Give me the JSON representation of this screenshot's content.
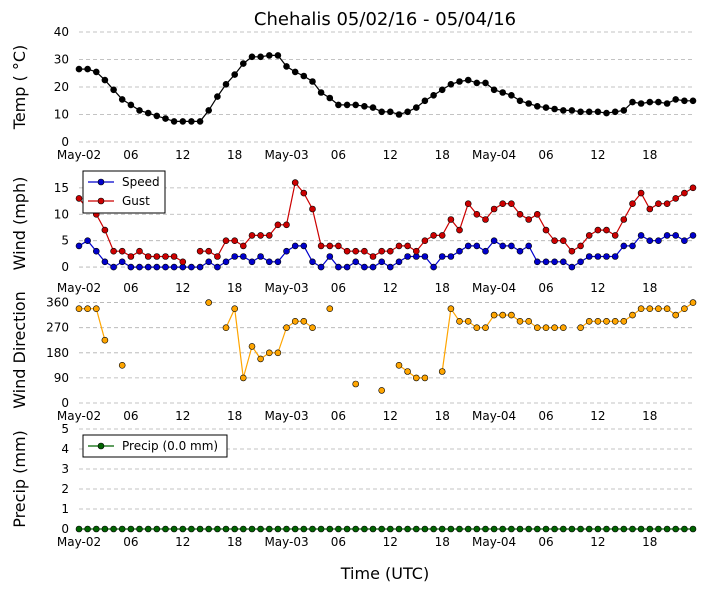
{
  "figure": {
    "title": "Chehalis 05/02/16 - 05/04/16",
    "xlabel": "Time (UTC)"
  },
  "chart_data": [
    {
      "type": "line",
      "ylabel": "Temp ( °C)",
      "ylim": [
        0,
        40
      ],
      "yticks": [
        0,
        10,
        20,
        30,
        40
      ],
      "grid": true,
      "x_ticks": [
        "May-02",
        "06",
        "12",
        "18",
        "May-03",
        "06",
        "12",
        "18",
        "May-04",
        "06",
        "12",
        "18"
      ],
      "series": [
        {
          "color": "#000000",
          "values": [
            26.5,
            26.5,
            25.5,
            22.5,
            19,
            15.5,
            13.5,
            11.5,
            10.5,
            9.5,
            8.5,
            7.5,
            7.5,
            7.5,
            7.5,
            11.5,
            16.5,
            21,
            24.5,
            28.5,
            31,
            31,
            31.5,
            31.5,
            27.5,
            25.5,
            24,
            22,
            18,
            16,
            13.5,
            13.5,
            13.5,
            13,
            12.5,
            11,
            11,
            10,
            11,
            12.5,
            15,
            17,
            19,
            21,
            22,
            22.5,
            21.5,
            21.5,
            19,
            18,
            17,
            15,
            14,
            13,
            12.5,
            12,
            11.5,
            11.5,
            11,
            11,
            11,
            10.5,
            11,
            11.5,
            14.5,
            14,
            14.5,
            14.5,
            14,
            15.5,
            15,
            15
          ]
        }
      ]
    },
    {
      "type": "line",
      "ylabel": "Wind (mph)",
      "ylim": [
        -1.5,
        18
      ],
      "yticks": [
        0,
        5,
        10,
        15
      ],
      "grid": true,
      "legend": "top-left",
      "x_ticks": [
        "May-02",
        "06",
        "12",
        "18",
        "May-03",
        "06",
        "12",
        "18",
        "May-04",
        "06",
        "12",
        "18"
      ],
      "series": [
        {
          "name": "Speed",
          "color": "#0000cc",
          "values": [
            4,
            5,
            3,
            1,
            0,
            1,
            0,
            0,
            0,
            0,
            0,
            0,
            0,
            0,
            0,
            1,
            0,
            1,
            2,
            2,
            1,
            2,
            1,
            1,
            3,
            4,
            4,
            1,
            0,
            2,
            0,
            0,
            1,
            0,
            0,
            1,
            0,
            1,
            2,
            2,
            2,
            0,
            2,
            2,
            3,
            4,
            4,
            3,
            5,
            4,
            4,
            3,
            4,
            1,
            1,
            1,
            1,
            0,
            1,
            2,
            2,
            2,
            2,
            4,
            4,
            6,
            5,
            5,
            6,
            6,
            5,
            6
          ]
        },
        {
          "name": "Gust",
          "color": "#cc0000",
          "values": [
            13,
            11,
            10,
            7,
            3,
            3,
            2,
            3,
            2,
            2,
            2,
            2,
            1,
            null,
            3,
            3,
            2,
            5,
            5,
            4,
            6,
            6,
            6,
            8,
            8,
            16,
            14,
            11,
            4,
            4,
            4,
            3,
            3,
            3,
            2,
            3,
            3,
            4,
            4,
            3,
            5,
            6,
            6,
            9,
            7,
            12,
            10,
            9,
            11,
            12,
            12,
            10,
            9,
            10,
            7,
            5,
            5,
            3,
            4,
            6,
            7,
            7,
            6,
            9,
            12,
            14,
            11,
            12,
            12,
            13,
            14,
            15
          ]
        }
      ]
    },
    {
      "type": "scatter",
      "ylabel": "Wind Direction",
      "ylim": [
        0,
        380
      ],
      "yticks": [
        0,
        90,
        180,
        270,
        360
      ],
      "grid": true,
      "x_ticks": [
        "May-02",
        "06",
        "12",
        "18",
        "May-03",
        "06",
        "12",
        "18",
        "May-04",
        "06",
        "12",
        "18"
      ],
      "series": [
        {
          "color": "#ffa500",
          "values": [
            338,
            338,
            338,
            225,
            null,
            135,
            null,
            null,
            null,
            null,
            null,
            null,
            null,
            null,
            null,
            360,
            null,
            270,
            338,
            90,
            203,
            158,
            180,
            180,
            270,
            293,
            293,
            270,
            null,
            338,
            null,
            null,
            68,
            null,
            null,
            45,
            null,
            135,
            113,
            90,
            90,
            null,
            113,
            338,
            293,
            293,
            270,
            270,
            315,
            315,
            315,
            293,
            293,
            270,
            270,
            270,
            270,
            null,
            270,
            293,
            293,
            293,
            293,
            293,
            315,
            338,
            338,
            338,
            338,
            315,
            338,
            360
          ]
        }
      ]
    },
    {
      "type": "line",
      "ylabel": "Precip (mm)",
      "ylim": [
        0,
        5
      ],
      "yticks": [
        0,
        1,
        2,
        3,
        4,
        5
      ],
      "grid": true,
      "legend": "top-left",
      "x_ticks": [
        "May-02",
        "06",
        "12",
        "18",
        "May-03",
        "06",
        "12",
        "18",
        "May-04",
        "06",
        "12",
        "18"
      ],
      "series": [
        {
          "name": "Precip (0.0 mm)",
          "color": "#006400",
          "values": [
            0,
            0,
            0,
            0,
            0,
            0,
            0,
            0,
            0,
            0,
            0,
            0,
            0,
            0,
            0,
            0,
            0,
            0,
            0,
            0,
            0,
            0,
            0,
            0,
            0,
            0,
            0,
            0,
            0,
            0,
            0,
            0,
            0,
            0,
            0,
            0,
            0,
            0,
            0,
            0,
            0,
            0,
            0,
            0,
            0,
            0,
            0,
            0,
            0,
            0,
            0,
            0,
            0,
            0,
            0,
            0,
            0,
            0,
            0,
            0,
            0,
            0,
            0,
            0,
            0,
            0,
            0,
            0,
            0,
            0,
            0,
            0
          ]
        }
      ]
    }
  ]
}
